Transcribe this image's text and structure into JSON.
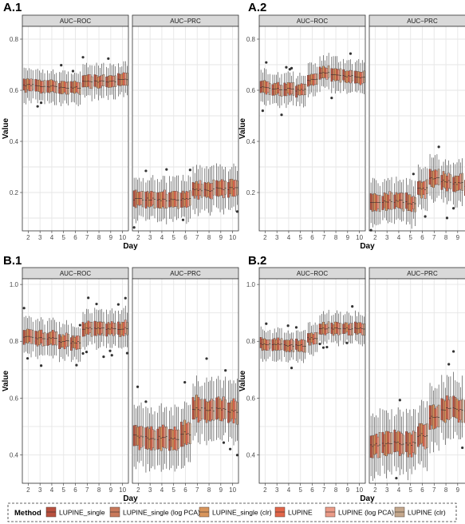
{
  "chart_data": [
    {
      "panel": "A.1",
      "type": "boxplot",
      "facets": [
        "AUC−ROC",
        "AUC−PRC"
      ],
      "xlabel": "Day",
      "ylabel": "Value",
      "ylim": [
        0.05,
        0.85
      ],
      "yticks": [
        0.2,
        0.4,
        0.6,
        0.8
      ],
      "x": [
        2,
        3,
        4,
        5,
        6,
        7,
        8,
        9,
        10
      ],
      "grid": true,
      "facet_medians": {
        "AUC−ROC": [
          0.62,
          0.615,
          0.615,
          0.61,
          0.61,
          0.635,
          0.635,
          0.635,
          0.64
        ],
        "AUC−PRC": [
          0.175,
          0.175,
          0.17,
          0.17,
          0.175,
          0.21,
          0.21,
          0.215,
          0.215
        ]
      },
      "facet_spread": {
        "AUC−ROC": 0.03,
        "AUC−PRC": 0.04
      }
    },
    {
      "panel": "A.2",
      "type": "boxplot",
      "facets": [
        "AUC−ROC",
        "AUC−PRC"
      ],
      "xlabel": "Day",
      "ylabel": "Value",
      "ylim": [
        0.05,
        0.85
      ],
      "yticks": [
        0.2,
        0.4,
        0.6,
        0.8
      ],
      "x": [
        2,
        3,
        4,
        5,
        6,
        7,
        8,
        9,
        10
      ],
      "grid": true,
      "facet_medians": {
        "AUC−ROC": [
          0.61,
          0.605,
          0.605,
          0.6,
          0.64,
          0.67,
          0.66,
          0.655,
          0.65
        ],
        "AUC−PRC": [
          0.165,
          0.165,
          0.165,
          0.16,
          0.215,
          0.255,
          0.245,
          0.235,
          0.225
        ]
      },
      "facet_spread": {
        "AUC−ROC": 0.03,
        "AUC−PRC": 0.04
      }
    },
    {
      "panel": "B.1",
      "type": "boxplot",
      "facets": [
        "AUC−ROC",
        "AUC−PRC"
      ],
      "xlabel": "Day",
      "ylabel": "Value",
      "ylim": [
        0.3,
        1.02
      ],
      "yticks": [
        0.4,
        0.6,
        0.8,
        1.0
      ],
      "x": [
        2,
        3,
        4,
        5,
        6,
        7,
        8,
        9,
        10
      ],
      "grid": true,
      "facet_medians": {
        "AUC−ROC": [
          0.815,
          0.81,
          0.81,
          0.8,
          0.795,
          0.845,
          0.845,
          0.845,
          0.845
        ],
        "AUC−PRC": [
          0.465,
          0.46,
          0.46,
          0.455,
          0.475,
          0.56,
          0.56,
          0.56,
          0.555
        ]
      },
      "facet_spread": {
        "AUC−ROC": 0.03,
        "AUC−PRC": 0.05
      }
    },
    {
      "panel": "B.2",
      "type": "boxplot",
      "facets": [
        "AUC−ROC",
        "AUC−PRC"
      ],
      "xlabel": "Day",
      "ylabel": "Value",
      "ylim": [
        0.3,
        1.02
      ],
      "yticks": [
        0.4,
        0.6,
        0.8,
        1.0
      ],
      "x": [
        2,
        3,
        4,
        5,
        6,
        7,
        8,
        9,
        10
      ],
      "grid": true,
      "facet_medians": {
        "AUC−ROC": [
          0.79,
          0.79,
          0.785,
          0.785,
          0.81,
          0.845,
          0.845,
          0.845,
          0.845
        ],
        "AUC−PRC": [
          0.435,
          0.435,
          0.44,
          0.44,
          0.47,
          0.535,
          0.56,
          0.56,
          0.56
        ]
      },
      "facet_spread": {
        "AUC−ROC": 0.025,
        "AUC−PRC": 0.05
      }
    }
  ],
  "legend": {
    "title": "Method",
    "items": [
      {
        "label": "LUPINE_single",
        "color": "#b9503e"
      },
      {
        "label": "LUPINE_single (log PCA)",
        "color": "#c97a5c"
      },
      {
        "label": "LUPINE_single (clr)",
        "color": "#d8955c"
      },
      {
        "label": "LUPINE",
        "color": "#e2664a"
      },
      {
        "label": "LUPINE (log PCA)",
        "color": "#eb9b88"
      },
      {
        "label": "LUPINE (clr)",
        "color": "#c4a78c"
      }
    ]
  },
  "colors": {
    "strip_bg": "#d9d9d9",
    "panel_border": "#333333",
    "grid_major": "#e6e6e6",
    "whisker": "#333333",
    "outlier": "#333333"
  }
}
